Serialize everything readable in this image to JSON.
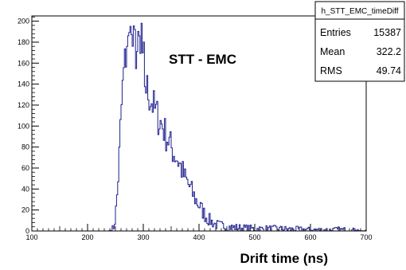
{
  "chart_data": {
    "type": "histogram",
    "title": "",
    "annotation": "STT - EMC",
    "xlabel": "Drift time (ns)",
    "ylabel": "",
    "xlim": [
      100,
      700
    ],
    "ylim": [
      0,
      205
    ],
    "x_ticks": [
      100,
      200,
      300,
      400,
      500,
      600,
      700
    ],
    "y_ticks": [
      0,
      20,
      40,
      60,
      80,
      100,
      120,
      140,
      160,
      180,
      200
    ],
    "grid": false,
    "bin_width": 2,
    "line_color": "#1f1f8f",
    "stats_box": {
      "name": "h_STT_EMC_timeDiff",
      "rows": [
        {
          "label": "Entries",
          "value": "15387"
        },
        {
          "label": "Mean",
          "value": "322.2"
        },
        {
          "label": "RMS",
          "value": "49.74"
        }
      ]
    },
    "profile": [
      [
        100,
        0
      ],
      [
        238,
        0
      ],
      [
        244,
        1
      ],
      [
        248,
        5
      ],
      [
        252,
        25
      ],
      [
        256,
        60
      ],
      [
        260,
        110
      ],
      [
        264,
        145
      ],
      [
        268,
        165
      ],
      [
        272,
        175
      ],
      [
        276,
        182
      ],
      [
        280,
        178
      ],
      [
        284,
        176
      ],
      [
        288,
        170
      ],
      [
        292,
        172
      ],
      [
        296,
        160
      ],
      [
        300,
        150
      ],
      [
        305,
        138
      ],
      [
        310,
        130
      ],
      [
        315,
        124
      ],
      [
        320,
        116
      ],
      [
        325,
        110
      ],
      [
        330,
        104
      ],
      [
        335,
        100
      ],
      [
        340,
        92
      ],
      [
        345,
        87
      ],
      [
        350,
        80
      ],
      [
        355,
        74
      ],
      [
        360,
        70
      ],
      [
        365,
        64
      ],
      [
        370,
        57
      ],
      [
        375,
        50
      ],
      [
        380,
        45
      ],
      [
        385,
        40
      ],
      [
        390,
        34
      ],
      [
        395,
        29
      ],
      [
        400,
        25
      ],
      [
        405,
        20
      ],
      [
        410,
        16
      ],
      [
        415,
        12
      ],
      [
        420,
        10
      ],
      [
        425,
        8
      ],
      [
        430,
        6
      ],
      [
        440,
        5
      ],
      [
        450,
        4
      ],
      [
        470,
        3
      ],
      [
        500,
        2
      ],
      [
        540,
        2
      ],
      [
        600,
        1
      ],
      [
        660,
        1
      ],
      [
        700,
        0
      ]
    ],
    "peaks": [
      [
        276,
        195
      ],
      [
        284,
        192
      ],
      [
        296,
        198
      ],
      [
        292,
        186
      ],
      [
        300,
        180
      ],
      [
        270,
        176
      ]
    ]
  }
}
